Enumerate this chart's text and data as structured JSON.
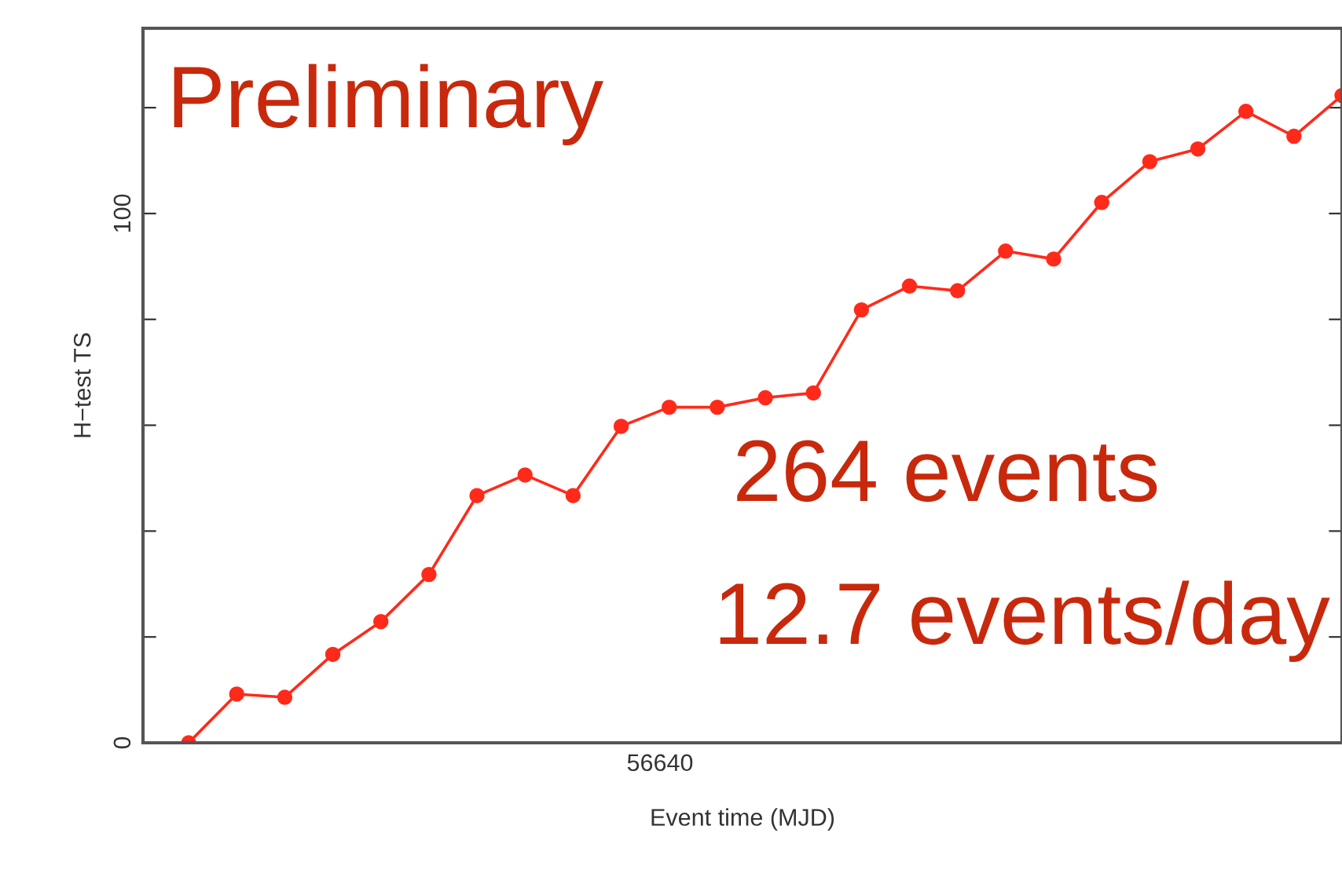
{
  "chart_data": {
    "type": "line",
    "xlabel": "Event time (MJD)",
    "ylabel": "H−test TS",
    "annotations": [
      "Preliminary",
      "264 events",
      "12.7 events/day",
      "56640"
    ],
    "categories": [
      null,
      null,
      null,
      null,
      null,
      null,
      null,
      null,
      null,
      null,
      null,
      null,
      null,
      null,
      null,
      null,
      null,
      null,
      null,
      null,
      null,
      null,
      null,
      null,
      null
    ],
    "series": [
      {
        "color": "#ff2a1a",
        "values": [
          0,
          9.2,
          8.6,
          16.7,
          22.9,
          31.8,
          46.7,
          50.6,
          46.7,
          59.8,
          63.4,
          63.4,
          65.2,
          66.1,
          81.8,
          86.3,
          85.4,
          92.9,
          91.4,
          102.1,
          109.8,
          112.2,
          119.3,
          114.6,
          122.3
        ]
      }
    ],
    "ylim": [
      0,
      135
    ],
    "yticks": [
      {
        "value": 0,
        "label": "0"
      },
      {
        "value": 20,
        "label": null
      },
      {
        "value": 40,
        "label": null
      },
      {
        "value": 60,
        "label": null
      },
      {
        "value": 80,
        "label": null
      },
      {
        "value": 100,
        "label": "100"
      },
      {
        "value": 120,
        "label": null
      }
    ],
    "tick_labels": "y",
    "marker": "circle",
    "line_style": "solid",
    "grid": false,
    "legend": false
  }
}
